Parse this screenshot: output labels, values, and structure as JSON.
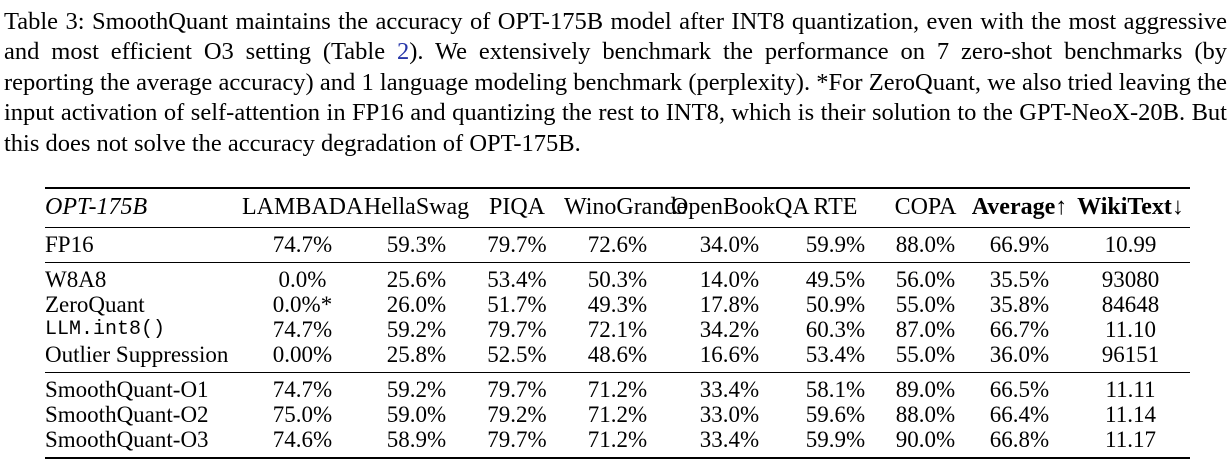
{
  "colors": {
    "background": "#ffffff",
    "text": "#000000",
    "reference_link_blue": "#2635a8"
  },
  "caption": {
    "text_before_link": "Table 3: SmoothQuant maintains the accuracy of OPT-175B model after INT8 quantization, even with the most aggressive and most efficient O3 setting (Table ",
    "link_text": "2",
    "text_after_link": "). We extensively benchmark the performance on 7 zero-shot benchmarks (by reporting the average accuracy) and 1 language modeling benchmark (perplexity). *For ZeroQuant, we also tried leaving the input activation of self-attention in FP16 and quantizing the rest to INT8, which is their solution to the GPT-NeoX-20B. But this does not solve the accuracy degradation of OPT-175B."
  },
  "table": {
    "columns": [
      {
        "label": "OPT-175B",
        "key": "model",
        "italic": true,
        "align": "left"
      },
      {
        "label": "LAMBADA",
        "key": "lambada"
      },
      {
        "label": "HellaSwag",
        "key": "hellaswag"
      },
      {
        "label": "PIQA",
        "key": "piqa"
      },
      {
        "label": "WinoGrande",
        "key": "winogrande"
      },
      {
        "label": "OpenBookQA",
        "key": "openbookqa"
      },
      {
        "label": "RTE",
        "key": "rte"
      },
      {
        "label": "COPA",
        "key": "copa"
      },
      {
        "label": "Average↑",
        "key": "average",
        "bold": true
      },
      {
        "label": "WikiText↓",
        "key": "wikitext",
        "bold": true
      }
    ],
    "groups": [
      {
        "rows": [
          {
            "label": "FP16",
            "values": [
              "74.7%",
              "59.3%",
              "79.7%",
              "72.6%",
              "34.0%",
              "59.9%",
              "88.0%",
              "66.9%",
              "10.99"
            ]
          }
        ]
      },
      {
        "rows": [
          {
            "label": "W8A8",
            "values": [
              "0.0%",
              "25.6%",
              "53.4%",
              "50.3%",
              "14.0%",
              "49.5%",
              "56.0%",
              "35.5%",
              "93080"
            ]
          },
          {
            "label": "ZeroQuant",
            "values": [
              "0.0%*",
              "26.0%",
              "51.7%",
              "49.3%",
              "17.8%",
              "50.9%",
              "55.0%",
              "35.8%",
              "84648"
            ]
          },
          {
            "label": "LLM.int8()",
            "mono": true,
            "values": [
              "74.7%",
              "59.2%",
              "79.7%",
              "72.1%",
              "34.2%",
              "60.3%",
              "87.0%",
              "66.7%",
              "11.10"
            ]
          },
          {
            "label": "Outlier Suppression",
            "values": [
              "0.00%",
              "25.8%",
              "52.5%",
              "48.6%",
              "16.6%",
              "53.4%",
              "55.0%",
              "36.0%",
              "96151"
            ]
          }
        ]
      },
      {
        "rows": [
          {
            "label": "SmoothQuant-O1",
            "values": [
              "74.7%",
              "59.2%",
              "79.7%",
              "71.2%",
              "33.4%",
              "58.1%",
              "89.0%",
              "66.5%",
              "11.11"
            ]
          },
          {
            "label": "SmoothQuant-O2",
            "values": [
              "75.0%",
              "59.0%",
              "79.2%",
              "71.2%",
              "33.0%",
              "59.6%",
              "88.0%",
              "66.4%",
              "11.14"
            ]
          },
          {
            "label": "SmoothQuant-O3",
            "values": [
              "74.6%",
              "58.9%",
              "79.7%",
              "71.2%",
              "33.4%",
              "59.9%",
              "90.0%",
              "66.8%",
              "11.17"
            ]
          }
        ]
      }
    ]
  }
}
